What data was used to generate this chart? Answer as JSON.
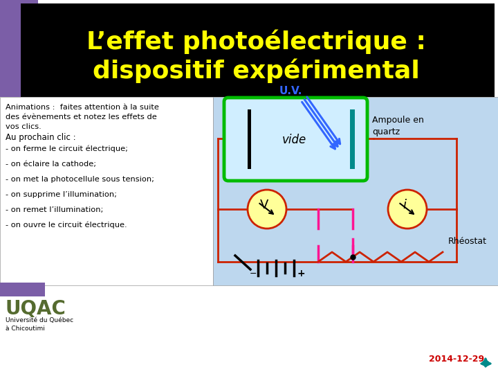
{
  "title_line1": "L’effet photoélectrique :",
  "title_line2": "dispositif expérimental",
  "title_color": "#FFFF00",
  "title_bg": "#000000",
  "bg_color": "#FFFFFF",
  "right_panel_bg": "#BDD7EE",
  "subtitle": "Animations :  faites attention à la suite\ndes évènements et notez les effets de\nvos clics.",
  "bullets": [
    "Au prochain clic :",
    "- on ferme le circuit électrique;",
    "- on éclaire la cathode;",
    "- on met la photocellule sous tension;",
    "- on supprime l’illumination;",
    "- on remet l’illumination;",
    "- on ouvre le circuit électrique."
  ],
  "uqac_text": "UQAC",
  "uqac_color": "#556B2F",
  "uni_text": "Université du Québec\nà Chicoutimi",
  "date_text": "2014-12-29",
  "date_color": "#CC0000",
  "circuit_green": "#00BB00",
  "circuit_red": "#CC2200",
  "circuit_pink": "#FF1493",
  "uv_color": "#3366FF",
  "uv_label": "U.V.",
  "vide_label": "vide",
  "ampoule_label": "Ampoule en\nquartz",
  "rheostat_label": "Rhéostat",
  "volt_label": "V",
  "amp_label": "i",
  "teal_plate": "#008B8B",
  "purple_color": "#7B5EA7"
}
